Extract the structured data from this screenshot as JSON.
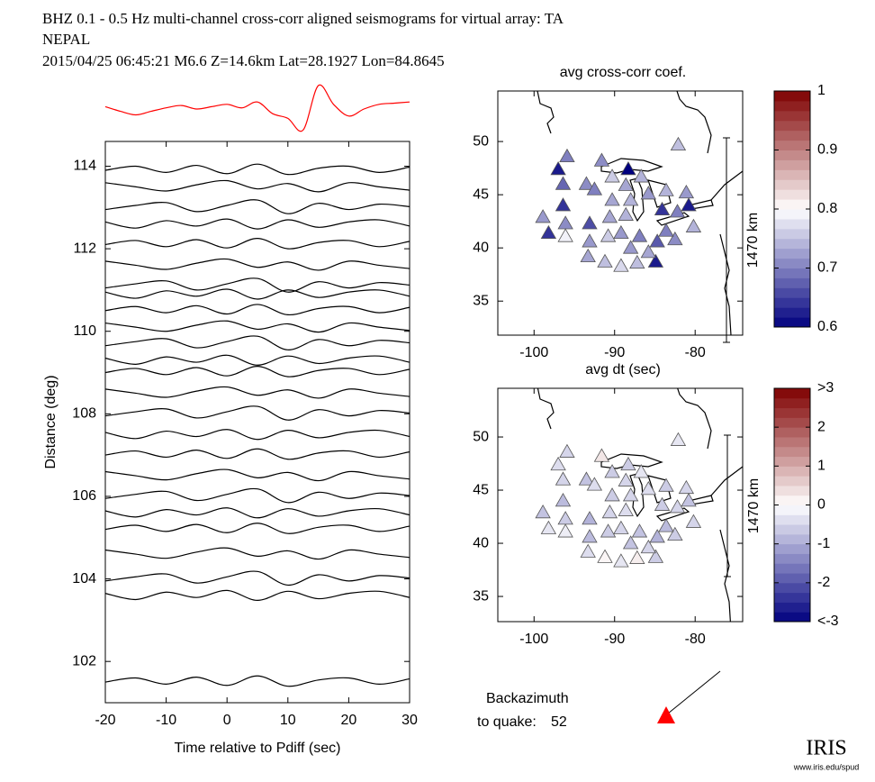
{
  "header": {
    "lines": [
      "BHZ  0.1 - 0.5 Hz  multi-channel cross-corr aligned seismograms for virtual array: TA",
      "NEPAL",
      "2015/04/25  06:45:21  M6.6  Z=14.6km Lat=28.1927 Lon=84.8645"
    ]
  },
  "backazimuth": {
    "label": "Backazimuth",
    "prefix": "to quake:",
    "value": 52
  },
  "logo": {
    "name": "IRIS",
    "url": "www.iris.edu/spud"
  },
  "chart_data": [
    {
      "type": "line",
      "color": "#ff0000",
      "xlim": [
        -20,
        30
      ],
      "ylim": [
        -1,
        1
      ],
      "x": [
        -20,
        -17.5,
        -15,
        -12.5,
        -10,
        -7.5,
        -5,
        -2.5,
        0,
        2.5,
        5,
        7.5,
        10,
        12.5,
        15,
        17.5,
        20,
        22.5,
        25,
        27.5,
        30
      ],
      "values": [
        0.1,
        -0.1,
        -0.25,
        -0.1,
        0.05,
        0.15,
        0.0,
        0.1,
        0.2,
        0.05,
        0.3,
        -0.2,
        -0.4,
        -0.9,
        1.0,
        0.2,
        -0.3,
        0.0,
        0.2,
        0.25,
        0.3
      ]
    },
    {
      "type": "line",
      "xlabel": "Time relative to Pdiff (sec)",
      "ylabel": "Distance (deg)",
      "xlim": [
        -20,
        30
      ],
      "ylim": [
        101,
        114.6
      ],
      "xticks": [
        -20,
        -10,
        0,
        10,
        20,
        30
      ],
      "yticks": [
        102,
        104,
        106,
        108,
        110,
        112,
        114
      ],
      "x": [
        -20,
        -15,
        -10,
        -5,
        0,
        5,
        10,
        15,
        20,
        25,
        30
      ],
      "series": [
        {
          "color": "#000000",
          "values": [
            101.5,
            101.6,
            101.45,
            101.62,
            101.42,
            101.65,
            101.4,
            101.55,
            101.6,
            101.45,
            101.58
          ]
        },
        {
          "color": "#000000",
          "values": [
            103.65,
            103.5,
            103.68,
            103.55,
            103.72,
            103.48,
            103.7,
            103.52,
            103.65,
            103.7,
            103.55
          ]
        },
        {
          "color": "#000000",
          "values": [
            103.95,
            104.05,
            104.12,
            103.9,
            104.05,
            104.18,
            103.85,
            104.1,
            103.95,
            104.08,
            104.02
          ]
        },
        {
          "color": "#000000",
          "values": [
            104.7,
            104.6,
            104.5,
            104.65,
            104.75,
            104.55,
            104.68,
            104.48,
            104.7,
            104.6,
            104.52
          ]
        },
        {
          "color": "#000000",
          "values": [
            105.2,
            105.3,
            105.15,
            105.32,
            105.12,
            105.35,
            105.1,
            105.25,
            105.3,
            105.15,
            105.28
          ]
        },
        {
          "color": "#000000",
          "values": [
            105.65,
            105.5,
            105.68,
            105.55,
            105.72,
            105.48,
            105.7,
            105.52,
            105.65,
            105.7,
            105.55
          ]
        },
        {
          "color": "#000000",
          "values": [
            105.95,
            106.05,
            106.12,
            105.9,
            106.05,
            106.18,
            105.85,
            106.1,
            105.95,
            106.08,
            106.02
          ]
        },
        {
          "color": "#000000",
          "values": [
            106.6,
            106.5,
            106.4,
            106.55,
            106.65,
            106.45,
            106.58,
            106.38,
            106.6,
            106.5,
            106.42
          ]
        },
        {
          "color": "#000000",
          "values": [
            107,
            107.1,
            106.95,
            107.12,
            106.92,
            107.15,
            106.9,
            107.05,
            107.1,
            106.95,
            107.08
          ]
        },
        {
          "color": "#000000",
          "values": [
            107.55,
            107.4,
            107.58,
            107.45,
            107.62,
            107.38,
            107.6,
            107.42,
            107.55,
            107.6,
            107.45
          ]
        },
        {
          "color": "#000000",
          "values": [
            107.95,
            108.05,
            108.12,
            107.9,
            108.05,
            108.18,
            107.85,
            108.1,
            107.95,
            108.08,
            108.02
          ]
        },
        {
          "color": "#000000",
          "values": [
            108.6,
            108.5,
            108.4,
            108.55,
            108.65,
            108.45,
            108.58,
            108.38,
            108.6,
            108.5,
            108.42
          ]
        },
        {
          "color": "#000000",
          "values": [
            109,
            109.1,
            108.95,
            109.12,
            108.92,
            109.15,
            108.9,
            109.05,
            109.1,
            108.95,
            109.08
          ]
        },
        {
          "color": "#000000",
          "values": [
            109.35,
            109.2,
            109.38,
            109.25,
            109.42,
            109.18,
            109.4,
            109.22,
            109.35,
            109.4,
            109.25
          ]
        },
        {
          "color": "#000000",
          "values": [
            109.65,
            109.75,
            109.82,
            109.6,
            109.75,
            109.88,
            109.55,
            109.8,
            109.65,
            109.78,
            109.72
          ]
        },
        {
          "color": "#000000",
          "values": [
            110.2,
            110.1,
            110,
            110.15,
            110.25,
            110.05,
            110.18,
            109.98,
            110.2,
            110.1,
            110.02
          ]
        },
        {
          "color": "#000000",
          "values": [
            110.5,
            110.6,
            110.45,
            110.62,
            110.42,
            110.65,
            110.4,
            110.55,
            110.6,
            110.45,
            110.58
          ]
        },
        {
          "color": "#000000",
          "values": [
            110.95,
            110.8,
            110.98,
            110.85,
            111.02,
            110.78,
            111,
            110.82,
            110.95,
            111,
            110.85
          ]
        },
        {
          "color": "#000000",
          "values": [
            111.05,
            111.15,
            111.22,
            111,
            111.15,
            111.28,
            110.95,
            111.2,
            111.05,
            111.18,
            111.12
          ]
        },
        {
          "color": "#000000",
          "values": [
            111.7,
            111.6,
            111.5,
            111.65,
            111.75,
            111.55,
            111.68,
            111.48,
            111.7,
            111.6,
            111.52
          ]
        },
        {
          "color": "#000000",
          "values": [
            112.1,
            112.2,
            112.05,
            112.22,
            112.02,
            112.25,
            112,
            112.15,
            112.2,
            112.05,
            112.18
          ]
        },
        {
          "color": "#000000",
          "values": [
            112.65,
            112.5,
            112.68,
            112.55,
            112.72,
            112.48,
            112.7,
            112.52,
            112.65,
            112.7,
            112.55
          ]
        },
        {
          "color": "#000000",
          "values": [
            112.95,
            113.05,
            113.12,
            112.9,
            113.05,
            113.18,
            112.85,
            113.1,
            112.95,
            113.08,
            113.02
          ]
        },
        {
          "color": "#000000",
          "values": [
            113.6,
            113.5,
            113.4,
            113.55,
            113.65,
            113.45,
            113.58,
            113.38,
            113.6,
            113.5,
            113.42
          ]
        },
        {
          "color": "#000000",
          "values": [
            113.9,
            114,
            113.85,
            114.02,
            113.82,
            114.05,
            113.8,
            113.95,
            114,
            113.85,
            113.98
          ]
        }
      ]
    },
    {
      "type": "scatter",
      "title": "avg cross-corr coef.",
      "scalebar_label": "1470 km",
      "xlim": [
        -104.5,
        -74.1
      ],
      "ylim": [
        31.8,
        54.75
      ],
      "xticks": [
        -100,
        -90,
        -80
      ],
      "yticks": [
        35,
        40,
        45,
        50
      ],
      "clim": [
        0.6,
        1
      ],
      "cticks": [
        0.6,
        0.7,
        0.8,
        0.9,
        1
      ],
      "colormap": [
        "#00007f",
        "#ffffff",
        "#7f0000"
      ],
      "x": [
        -95.9,
        -97.0,
        -82.1,
        -88.3,
        -91.6,
        -96.4,
        -93.5,
        -92.5,
        -90.3,
        -88.6,
        -86.7,
        -96.4,
        -90.3,
        -88.0,
        -85.8,
        -83.6,
        -81.1,
        -98.9,
        -96.1,
        -93.1,
        -90.6,
        -88.6,
        -84.1,
        -80.8,
        -82.2,
        -98.2,
        -96.1,
        -93.1,
        -90.8,
        -89.2,
        -86.9,
        -84.7,
        -82.5,
        -80.2,
        -93.3,
        -91.2,
        -89.2,
        -87.2,
        -84.9,
        -88.0,
        -85.8,
        -83.6
      ],
      "y": [
        48.6,
        47.4,
        49.7,
        47.4,
        48.2,
        46.0,
        46.0,
        45.5,
        46.7,
        45.9,
        46.7,
        44.0,
        44.5,
        44.5,
        45.1,
        45.4,
        45.2,
        42.9,
        42.3,
        42.3,
        42.9,
        43.1,
        43.6,
        44.0,
        43.4,
        41.4,
        41.1,
        40.6,
        41.1,
        41.4,
        41.1,
        40.6,
        40.8,
        42.0,
        39.2,
        38.7,
        38.3,
        38.6,
        38.7,
        40.0,
        39.6,
        41.6
      ],
      "values": [
        0.7,
        0.62,
        0.75,
        0.6,
        0.71,
        0.68,
        0.71,
        0.7,
        0.76,
        0.73,
        0.74,
        0.64,
        0.73,
        0.74,
        0.72,
        0.74,
        0.72,
        0.72,
        0.71,
        0.66,
        0.73,
        0.74,
        0.64,
        0.62,
        0.7,
        0.64,
        0.79,
        0.72,
        0.76,
        0.72,
        0.7,
        0.67,
        0.71,
        0.74,
        0.73,
        0.75,
        0.77,
        0.75,
        0.62,
        0.72,
        0.73,
        0.7
      ]
    },
    {
      "type": "scatter",
      "title": "avg dt (sec)",
      "scalebar_label": "1470 km",
      "xlim": [
        -104.5,
        -74.1
      ],
      "ylim": [
        32.63,
        54.58
      ],
      "xticks": [
        -100,
        -90,
        -80
      ],
      "yticks": [
        35,
        40,
        45,
        50
      ],
      "clim": [
        -3,
        3
      ],
      "cticks": [
        {
          "value": -3,
          "label": "<-3"
        },
        -2,
        -1,
        0,
        1,
        2,
        {
          "value": 3,
          "label": ">3"
        }
      ],
      "colormap": [
        "#00007f",
        "#ffffff",
        "#7f0000"
      ],
      "x": [
        -95.9,
        -97.0,
        -82.1,
        -88.3,
        -91.6,
        -96.4,
        -93.5,
        -92.5,
        -90.3,
        -88.6,
        -86.7,
        -96.4,
        -90.3,
        -88.0,
        -85.8,
        -83.6,
        -81.1,
        -98.9,
        -96.1,
        -93.1,
        -90.6,
        -88.6,
        -84.1,
        -80.8,
        -82.2,
        -98.2,
        -96.1,
        -93.1,
        -90.8,
        -89.2,
        -86.9,
        -84.7,
        -82.5,
        -80.2,
        -93.3,
        -91.2,
        -89.2,
        -87.2,
        -84.9,
        -88.0,
        -85.8,
        -83.6
      ],
      "y": [
        48.6,
        47.4,
        49.7,
        47.4,
        48.2,
        46.0,
        46.0,
        45.5,
        46.7,
        45.9,
        46.7,
        44.0,
        44.5,
        44.5,
        45.1,
        45.4,
        45.2,
        42.9,
        42.3,
        42.3,
        42.9,
        43.1,
        43.6,
        44.0,
        43.4,
        41.4,
        41.1,
        40.6,
        41.1,
        41.4,
        41.1,
        40.6,
        40.8,
        42.0,
        39.2,
        38.7,
        38.3,
        38.6,
        38.7,
        40.0,
        39.6,
        41.6
      ],
      "values": [
        -0.5,
        -0.4,
        -0.3,
        -0.6,
        0.3,
        -0.5,
        -0.7,
        -0.4,
        -0.6,
        -0.5,
        -0.3,
        -0.8,
        -0.6,
        -0.5,
        -0.4,
        -0.6,
        -0.5,
        -0.7,
        -0.6,
        -0.9,
        -0.5,
        -0.4,
        -0.6,
        -0.7,
        -0.5,
        -0.3,
        -0.2,
        -0.8,
        -0.6,
        -0.5,
        -0.7,
        -0.9,
        -0.6,
        -0.5,
        -0.4,
        0.1,
        -0.3,
        0.2,
        -0.6,
        -0.7,
        -0.5,
        -0.8
      ]
    }
  ]
}
